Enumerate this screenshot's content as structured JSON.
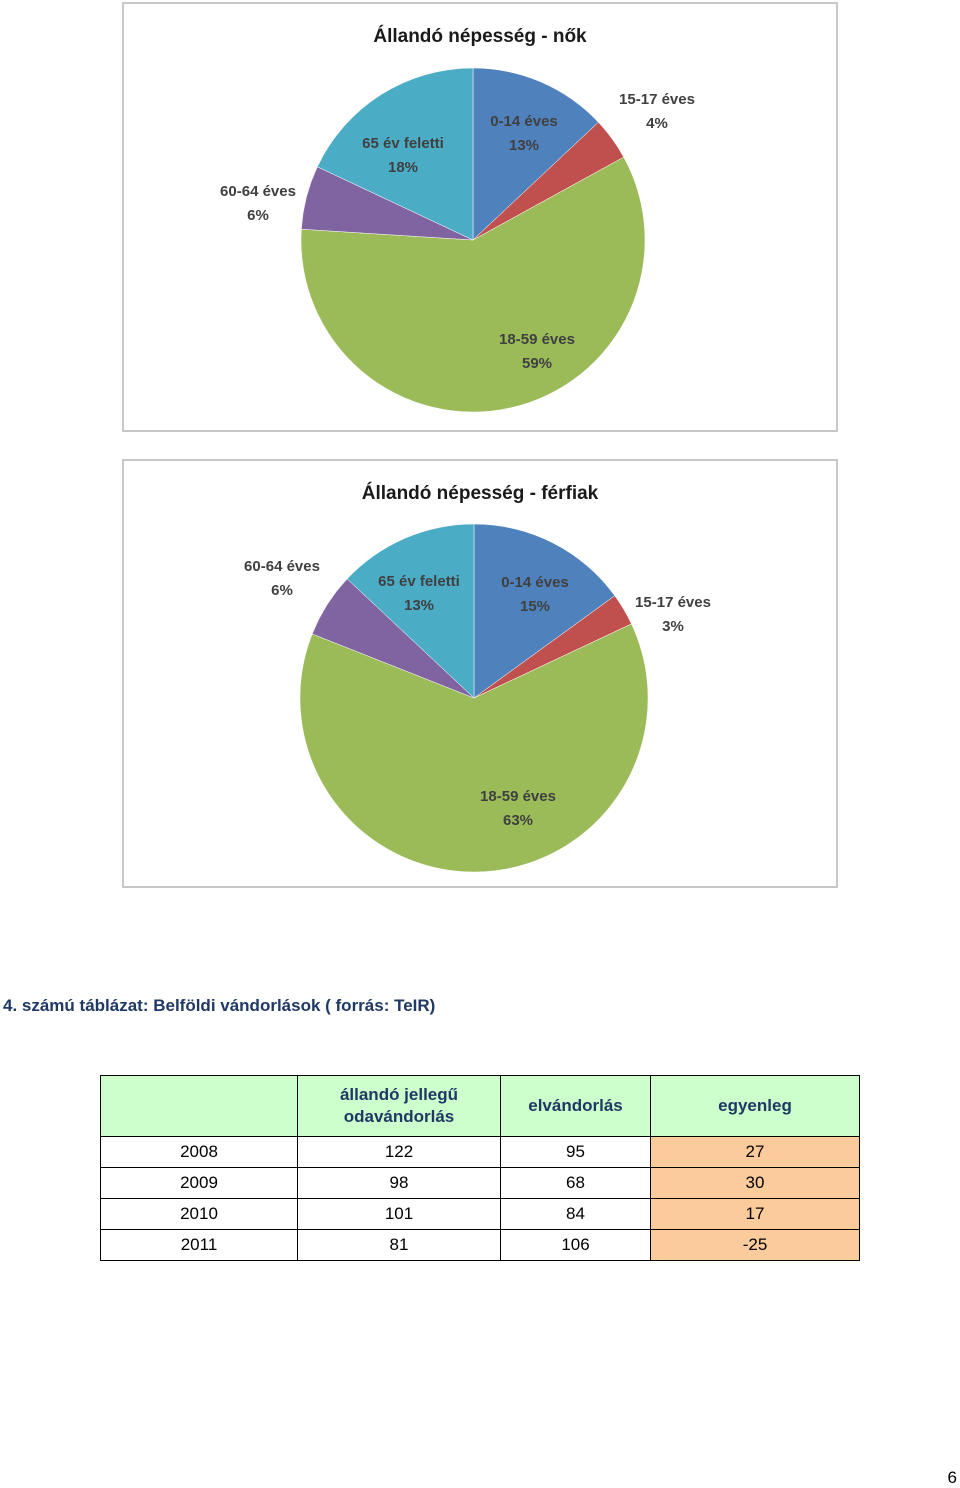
{
  "chart_data": [
    {
      "type": "pie",
      "title": "Állandó népesség - nők",
      "slices": [
        {
          "label": "0-14 éves",
          "value": 13,
          "display": "13%",
          "color": "#4f81bd"
        },
        {
          "label": "15-17 éves",
          "value": 4,
          "display": "4%",
          "color": "#c0504d"
        },
        {
          "label": "18-59 éves",
          "value": 59,
          "display": "59%",
          "color": "#9bbb59"
        },
        {
          "label": "60-64 éves",
          "value": 6,
          "display": "6%",
          "color": "#8064a2"
        },
        {
          "label": "65 év feletti",
          "value": 18,
          "display": "18%",
          "color": "#4bacc6"
        }
      ]
    },
    {
      "type": "pie",
      "title": "Állandó népesség - férfiak",
      "slices": [
        {
          "label": "0-14 éves",
          "value": 15,
          "display": "15%",
          "color": "#4f81bd"
        },
        {
          "label": "15-17 éves",
          "value": 3,
          "display": "3%",
          "color": "#c0504d"
        },
        {
          "label": "18-59 éves",
          "value": 63,
          "display": "63%",
          "color": "#9bbb59"
        },
        {
          "label": "60-64 éves",
          "value": 6,
          "display": "6%",
          "color": "#8064a2"
        },
        {
          "label": "65 év feletti",
          "value": 13,
          "display": "13%",
          "color": "#4bacc6"
        }
      ]
    }
  ],
  "caption": "4. számú táblázat: Belföldi vándorlások ( forrás: TeIR)",
  "table": {
    "headers": [
      "",
      "állandó jellegű odavándorlás",
      "elvándorlás",
      "egyenleg"
    ],
    "rows": [
      [
        "2008",
        "122",
        "95",
        "27"
      ],
      [
        "2009",
        "98",
        "68",
        "30"
      ],
      [
        "2010",
        "101",
        "84",
        "17"
      ],
      [
        "2011",
        "81",
        "106",
        "-25"
      ]
    ]
  },
  "page_number": "6"
}
